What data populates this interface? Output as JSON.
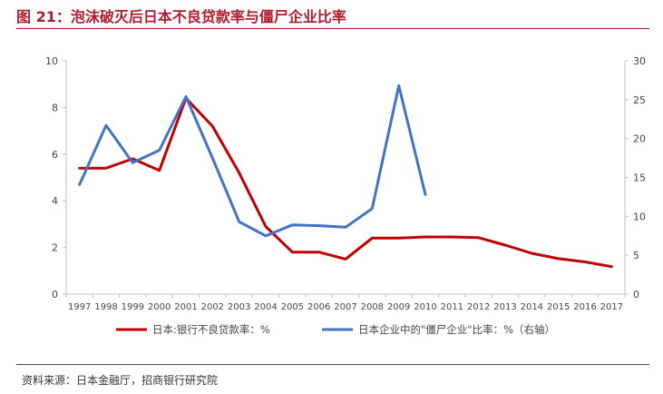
{
  "title": "图 21：泡沫破灭后日本不良贷款率与僵尸企业比率",
  "source": "资料来源：日本金融厅，招商银行研究院",
  "colors": {
    "brand": "#b01b2e",
    "series_red": "#c00000",
    "series_blue": "#4472c4"
  },
  "chart_data": {
    "type": "line",
    "categories": [
      "1997",
      "1998",
      "1999",
      "2000",
      "2001",
      "2002",
      "2003",
      "2004",
      "2005",
      "2006",
      "2007",
      "2008",
      "2009",
      "2010",
      "2011",
      "2012",
      "2013",
      "2014",
      "2015",
      "2016",
      "2017"
    ],
    "left_axis": {
      "min": 0,
      "max": 10,
      "ticks": [
        "0",
        "2",
        "4",
        "6",
        "8",
        "10"
      ]
    },
    "right_axis": {
      "min": 0,
      "max": 30,
      "ticks": [
        "0",
        "5",
        "10",
        "15",
        "20",
        "25",
        "30"
      ]
    },
    "grid": false,
    "legend_position": "bottom",
    "series": [
      {
        "name": "日本:银行不良贷款率：%",
        "axis": "left",
        "color": "#c00000",
        "values": [
          5.4,
          5.4,
          5.8,
          5.3,
          8.4,
          7.2,
          5.2,
          2.9,
          1.8,
          1.8,
          1.5,
          2.4,
          2.4,
          2.45,
          2.45,
          2.42,
          2.1,
          1.75,
          1.52,
          1.38,
          1.18
        ]
      },
      {
        "name": "日本企业中的\"僵尸企业\"比率：%（右轴）",
        "axis": "right",
        "color": "#4472c4",
        "values": [
          14.1,
          21.7,
          16.9,
          18.5,
          25.4,
          17.5,
          9.3,
          7.5,
          8.9,
          8.8,
          8.6,
          11.0,
          26.8,
          12.8,
          null,
          null,
          null,
          null,
          null,
          null,
          null
        ]
      }
    ]
  }
}
